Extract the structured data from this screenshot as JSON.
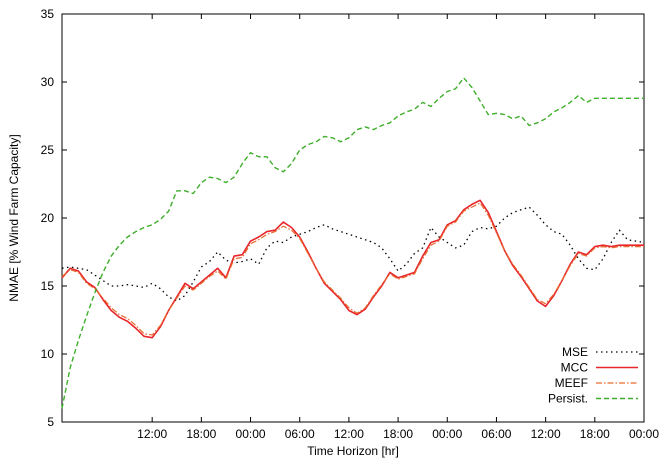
{
  "chart_data": {
    "type": "line",
    "xlabel": "Time Horizon [hr]",
    "ylabel": "NMAE [% Wind Farm Capacity]",
    "xlim": [
      1,
      72
    ],
    "ylim": [
      5,
      35
    ],
    "yticks": [
      5,
      10,
      15,
      20,
      25,
      30,
      35
    ],
    "xticks": [
      {
        "x": 12,
        "label": "12:00"
      },
      {
        "x": 18,
        "label": "18:00"
      },
      {
        "x": 24,
        "label": "00:00"
      },
      {
        "x": 30,
        "label": "06:00"
      },
      {
        "x": 36,
        "label": "12:00"
      },
      {
        "x": 42,
        "label": "18:00"
      },
      {
        "x": 48,
        "label": "00:00"
      },
      {
        "x": 54,
        "label": "06:00"
      },
      {
        "x": 60,
        "label": "12:00"
      },
      {
        "x": 66,
        "label": "18:00"
      },
      {
        "x": 72,
        "label": "00:00"
      }
    ],
    "legend_position": "bottom-right",
    "grid": false,
    "series": [
      {
        "name": "MSE",
        "color": "#000000",
        "dash": "1.5,3.5",
        "width": 1.3,
        "points": [
          [
            1,
            16.3
          ],
          [
            2,
            16.4
          ],
          [
            3,
            16.3
          ],
          [
            4,
            16.2
          ],
          [
            5,
            15.8
          ],
          [
            6,
            15.4
          ],
          [
            7,
            15.0
          ],
          [
            8,
            15.0
          ],
          [
            9,
            15.1
          ],
          [
            10,
            15.0
          ],
          [
            11,
            14.9
          ],
          [
            12,
            15.2
          ],
          [
            13,
            14.8
          ],
          [
            14,
            14.2
          ],
          [
            15,
            13.9
          ],
          [
            16,
            14.3
          ],
          [
            17,
            15.3
          ],
          [
            18,
            16.4
          ],
          [
            19,
            16.8
          ],
          [
            20,
            17.5
          ],
          [
            21,
            16.9
          ],
          [
            22,
            16.7
          ],
          [
            23,
            16.8
          ],
          [
            24,
            17.0
          ],
          [
            25,
            16.6
          ],
          [
            26,
            17.8
          ],
          [
            27,
            18.3
          ],
          [
            28,
            18.2
          ],
          [
            29,
            18.6
          ],
          [
            30,
            18.8
          ],
          [
            31,
            19.0
          ],
          [
            32,
            19.3
          ],
          [
            33,
            19.5
          ],
          [
            34,
            19.2
          ],
          [
            35,
            19.0
          ],
          [
            36,
            18.8
          ],
          [
            37,
            18.6
          ],
          [
            38,
            18.4
          ],
          [
            39,
            18.2
          ],
          [
            40,
            17.8
          ],
          [
            41,
            17.0
          ],
          [
            42,
            16.1
          ],
          [
            43,
            16.6
          ],
          [
            44,
            17.4
          ],
          [
            45,
            17.8
          ],
          [
            46,
            19.3
          ],
          [
            47,
            18.6
          ],
          [
            48,
            18.2
          ],
          [
            49,
            17.8
          ],
          [
            50,
            18.0
          ],
          [
            51,
            19.0
          ],
          [
            52,
            19.3
          ],
          [
            53,
            19.2
          ],
          [
            54,
            19.4
          ],
          [
            55,
            20.0
          ],
          [
            56,
            20.4
          ],
          [
            57,
            20.6
          ],
          [
            58,
            20.8
          ],
          [
            59,
            20.2
          ],
          [
            60,
            19.5
          ],
          [
            61,
            19.0
          ],
          [
            62,
            18.8
          ],
          [
            63,
            18.0
          ],
          [
            64,
            17.0
          ],
          [
            65,
            16.3
          ],
          [
            66,
            16.2
          ],
          [
            67,
            17.0
          ],
          [
            68,
            18.2
          ],
          [
            69,
            19.1
          ],
          [
            70,
            18.4
          ],
          [
            71,
            18.3
          ],
          [
            72,
            18.2
          ]
        ]
      },
      {
        "name": "MCC",
        "color": "#e8262b",
        "dash": "",
        "width": 1.6,
        "points": [
          [
            1,
            15.6
          ],
          [
            2,
            16.3
          ],
          [
            3,
            16.1
          ],
          [
            4,
            15.3
          ],
          [
            5,
            14.9
          ],
          [
            6,
            14.0
          ],
          [
            7,
            13.2
          ],
          [
            8,
            12.7
          ],
          [
            9,
            12.4
          ],
          [
            10,
            11.9
          ],
          [
            11,
            11.3
          ],
          [
            12,
            11.2
          ],
          [
            13,
            12.0
          ],
          [
            14,
            13.2
          ],
          [
            15,
            14.2
          ],
          [
            16,
            15.2
          ],
          [
            17,
            14.8
          ],
          [
            18,
            15.3
          ],
          [
            19,
            15.8
          ],
          [
            20,
            16.3
          ],
          [
            21,
            15.6
          ],
          [
            22,
            17.2
          ],
          [
            23,
            17.3
          ],
          [
            24,
            18.3
          ],
          [
            25,
            18.6
          ],
          [
            26,
            19.0
          ],
          [
            27,
            19.1
          ],
          [
            28,
            19.7
          ],
          [
            29,
            19.3
          ],
          [
            30,
            18.6
          ],
          [
            31,
            17.5
          ],
          [
            32,
            16.3
          ],
          [
            33,
            15.2
          ],
          [
            34,
            14.6
          ],
          [
            35,
            14.0
          ],
          [
            36,
            13.2
          ],
          [
            37,
            12.9
          ],
          [
            38,
            13.3
          ],
          [
            39,
            14.2
          ],
          [
            40,
            15.0
          ],
          [
            41,
            16.0
          ],
          [
            42,
            15.6
          ],
          [
            43,
            15.8
          ],
          [
            44,
            16.0
          ],
          [
            45,
            17.2
          ],
          [
            46,
            18.2
          ],
          [
            47,
            18.4
          ],
          [
            48,
            19.5
          ],
          [
            49,
            19.8
          ],
          [
            50,
            20.6
          ],
          [
            51,
            21.0
          ],
          [
            52,
            21.3
          ],
          [
            53,
            20.4
          ],
          [
            54,
            19.0
          ],
          [
            55,
            17.6
          ],
          [
            56,
            16.5
          ],
          [
            57,
            15.7
          ],
          [
            58,
            14.8
          ],
          [
            59,
            13.9
          ],
          [
            60,
            13.5
          ],
          [
            61,
            14.3
          ],
          [
            62,
            15.4
          ],
          [
            63,
            16.6
          ],
          [
            64,
            17.5
          ],
          [
            65,
            17.3
          ],
          [
            66,
            17.9
          ],
          [
            67,
            18.0
          ],
          [
            68,
            17.9
          ],
          [
            69,
            18.0
          ],
          [
            70,
            18.0
          ],
          [
            71,
            18.0
          ],
          [
            72,
            18.0
          ]
        ]
      },
      {
        "name": "MEEF",
        "color": "#e86a2e",
        "dash": "6,2,1.5,2",
        "width": 1.2,
        "points": [
          [
            1,
            15.7
          ],
          [
            2,
            16.2
          ],
          [
            3,
            16.0
          ],
          [
            4,
            15.2
          ],
          [
            5,
            14.8
          ],
          [
            6,
            14.1
          ],
          [
            7,
            13.4
          ],
          [
            8,
            12.9
          ],
          [
            9,
            12.6
          ],
          [
            10,
            12.1
          ],
          [
            11,
            11.5
          ],
          [
            12,
            11.4
          ],
          [
            13,
            12.1
          ],
          [
            14,
            13.2
          ],
          [
            15,
            14.1
          ],
          [
            16,
            15.0
          ],
          [
            17,
            14.7
          ],
          [
            18,
            15.2
          ],
          [
            19,
            15.7
          ],
          [
            20,
            16.1
          ],
          [
            21,
            15.5
          ],
          [
            22,
            17.0
          ],
          [
            23,
            17.1
          ],
          [
            24,
            18.1
          ],
          [
            25,
            18.4
          ],
          [
            26,
            18.8
          ],
          [
            27,
            19.0
          ],
          [
            28,
            19.4
          ],
          [
            29,
            19.1
          ],
          [
            30,
            18.5
          ],
          [
            31,
            17.4
          ],
          [
            32,
            16.3
          ],
          [
            33,
            15.3
          ],
          [
            34,
            14.7
          ],
          [
            35,
            14.1
          ],
          [
            36,
            13.4
          ],
          [
            37,
            13.0
          ],
          [
            38,
            13.4
          ],
          [
            39,
            14.3
          ],
          [
            40,
            15.1
          ],
          [
            41,
            15.9
          ],
          [
            42,
            15.5
          ],
          [
            43,
            15.7
          ],
          [
            44,
            15.9
          ],
          [
            45,
            17.0
          ],
          [
            46,
            18.0
          ],
          [
            47,
            18.3
          ],
          [
            48,
            19.4
          ],
          [
            49,
            19.7
          ],
          [
            50,
            20.5
          ],
          [
            51,
            20.8
          ],
          [
            52,
            21.1
          ],
          [
            53,
            20.2
          ],
          [
            54,
            18.9
          ],
          [
            55,
            17.6
          ],
          [
            56,
            16.6
          ],
          [
            57,
            15.8
          ],
          [
            58,
            14.9
          ],
          [
            59,
            14.0
          ],
          [
            60,
            13.7
          ],
          [
            61,
            14.4
          ],
          [
            62,
            15.4
          ],
          [
            63,
            16.5
          ],
          [
            64,
            17.4
          ],
          [
            65,
            17.2
          ],
          [
            66,
            17.8
          ],
          [
            67,
            17.9
          ],
          [
            68,
            17.8
          ],
          [
            69,
            17.9
          ],
          [
            70,
            17.9
          ],
          [
            71,
            17.9
          ],
          [
            72,
            17.9
          ]
        ]
      },
      {
        "name": "Persist.",
        "color": "#3fae2b",
        "dash": "5,3",
        "width": 1.4,
        "points": [
          [
            1,
            6.0
          ],
          [
            2,
            9.0
          ],
          [
            3,
            11.0
          ],
          [
            4,
            12.8
          ],
          [
            5,
            14.5
          ],
          [
            6,
            16.0
          ],
          [
            7,
            17.2
          ],
          [
            8,
            18.0
          ],
          [
            9,
            18.6
          ],
          [
            10,
            19.0
          ],
          [
            11,
            19.3
          ],
          [
            12,
            19.5
          ],
          [
            13,
            19.9
          ],
          [
            14,
            20.5
          ],
          [
            15,
            22.0
          ],
          [
            16,
            22.0
          ],
          [
            17,
            21.8
          ],
          [
            18,
            22.6
          ],
          [
            19,
            23.0
          ],
          [
            20,
            22.9
          ],
          [
            21,
            22.6
          ],
          [
            22,
            23.0
          ],
          [
            23,
            24.0
          ],
          [
            24,
            24.8
          ],
          [
            25,
            24.5
          ],
          [
            26,
            24.5
          ],
          [
            27,
            23.7
          ],
          [
            28,
            23.4
          ],
          [
            29,
            24.0
          ],
          [
            30,
            25.0
          ],
          [
            31,
            25.4
          ],
          [
            32,
            25.6
          ],
          [
            33,
            26.0
          ],
          [
            34,
            25.9
          ],
          [
            35,
            25.6
          ],
          [
            36,
            25.9
          ],
          [
            37,
            26.5
          ],
          [
            38,
            26.7
          ],
          [
            39,
            26.5
          ],
          [
            40,
            26.8
          ],
          [
            41,
            27.0
          ],
          [
            42,
            27.5
          ],
          [
            43,
            27.8
          ],
          [
            44,
            28.0
          ],
          [
            45,
            28.5
          ],
          [
            46,
            28.2
          ],
          [
            47,
            28.8
          ],
          [
            48,
            29.3
          ],
          [
            49,
            29.5
          ],
          [
            50,
            30.3
          ],
          [
            51,
            29.6
          ],
          [
            52,
            28.6
          ],
          [
            53,
            27.6
          ],
          [
            54,
            27.7
          ],
          [
            55,
            27.6
          ],
          [
            56,
            27.3
          ],
          [
            57,
            27.5
          ],
          [
            58,
            26.8
          ],
          [
            59,
            27.0
          ],
          [
            60,
            27.3
          ],
          [
            61,
            27.8
          ],
          [
            62,
            28.1
          ],
          [
            63,
            28.5
          ],
          [
            64,
            29.0
          ],
          [
            65,
            28.5
          ],
          [
            66,
            28.8
          ],
          [
            67,
            28.8
          ],
          [
            68,
            28.8
          ],
          [
            69,
            28.8
          ],
          [
            70,
            28.8
          ],
          [
            71,
            28.8
          ],
          [
            72,
            28.8
          ]
        ]
      }
    ]
  }
}
